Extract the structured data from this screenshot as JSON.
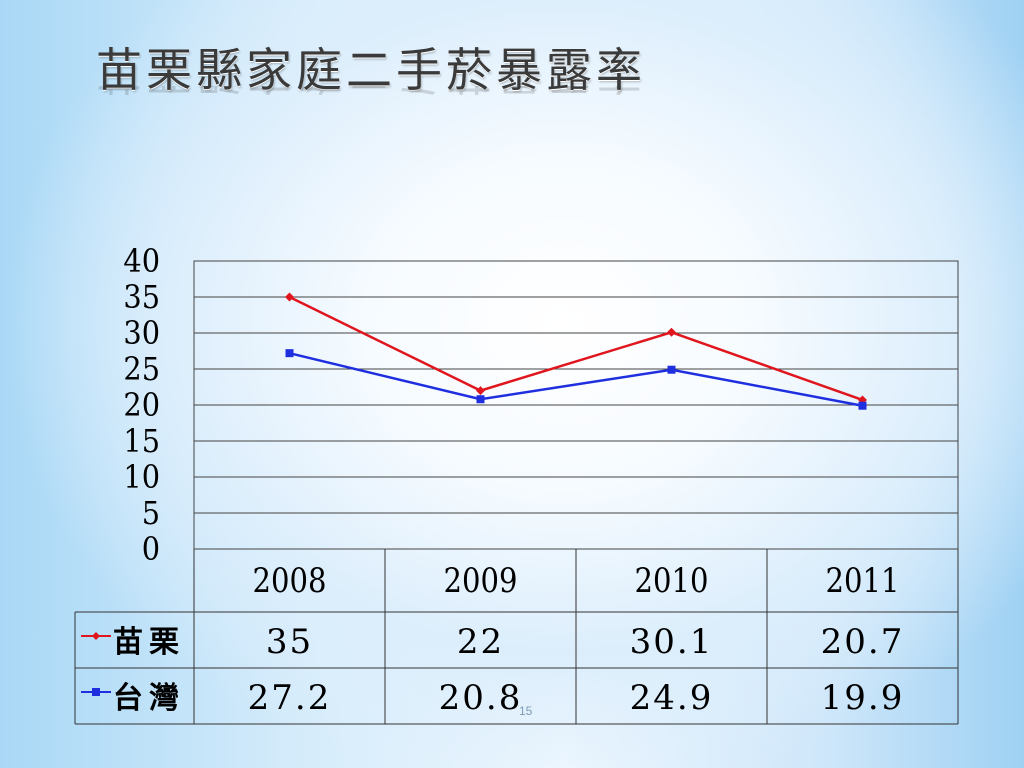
{
  "slide": {
    "title": "苗栗縣家庭二手菸暴露率",
    "slide_number": "15"
  },
  "chart_data": {
    "type": "line",
    "title": "苗栗縣家庭二手菸暴露率",
    "categories": [
      "2008",
      "2009",
      "2010",
      "2011"
    ],
    "ylim": [
      0,
      40
    ],
    "yticks": [
      0,
      5,
      10,
      15,
      20,
      25,
      30,
      35,
      40
    ],
    "grid": true,
    "legend": "data-table-left",
    "series": [
      {
        "name": "苗栗",
        "values": [
          35,
          22,
          30.1,
          20.7
        ],
        "labels": [
          "35",
          "22",
          "30.1",
          "20.7"
        ],
        "color": "#e0161e",
        "marker": "diamond"
      },
      {
        "name": "台灣",
        "values": [
          27.2,
          20.8,
          24.9,
          19.9
        ],
        "labels": [
          "27.2",
          "20.8",
          "24.9",
          "19.9"
        ],
        "color": "#1f2fe0",
        "marker": "square"
      }
    ]
  }
}
